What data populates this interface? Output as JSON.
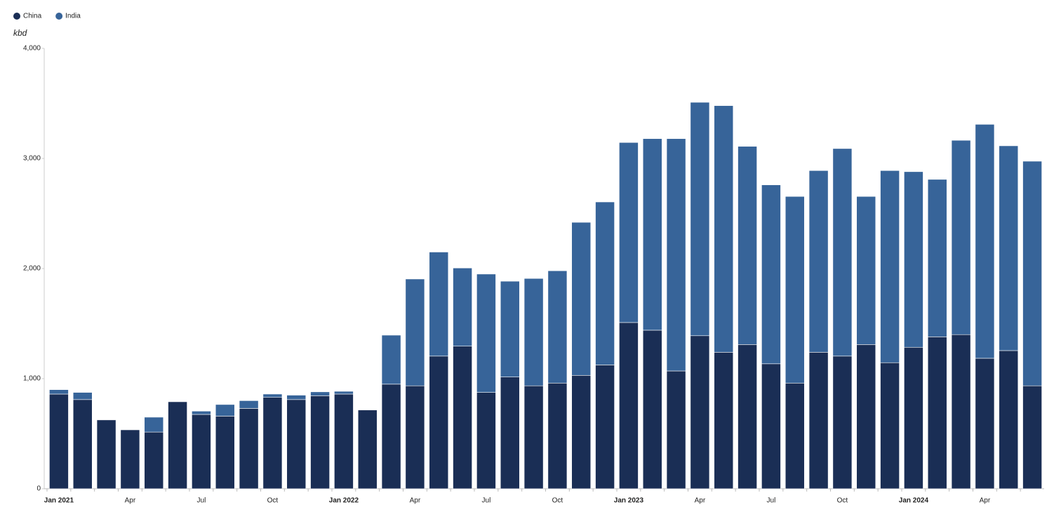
{
  "chart_data": {
    "type": "stacked_bar",
    "y_label": "kbd",
    "categories": [
      "Jan 2021",
      null,
      null,
      "Apr",
      null,
      null,
      "Jul",
      null,
      null,
      "Oct",
      null,
      null,
      "Jan 2022",
      null,
      null,
      "Apr",
      null,
      null,
      "Jul",
      null,
      null,
      "Oct",
      null,
      null,
      "Jan 2023",
      null,
      null,
      "Apr",
      null,
      null,
      "Jul",
      null,
      null,
      "Oct",
      null,
      null,
      "Jan 2024",
      null,
      null,
      "Apr",
      null,
      null
    ],
    "series": [
      {
        "name": "China",
        "color": "#1a2e55",
        "values": [
          860,
          810,
          625,
          535,
          515,
          790,
          675,
          660,
          730,
          830,
          810,
          845,
          860,
          715,
          950,
          935,
          1205,
          1295,
          875,
          1015,
          935,
          960,
          1030,
          1125,
          1510,
          1440,
          1070,
          1390,
          1240,
          1310,
          1135,
          960,
          1240,
          1205,
          1310,
          1145,
          1285,
          1380,
          1400,
          1185,
          1255,
          935
        ]
      },
      {
        "name": "India",
        "color": "#376499",
        "values": [
          40,
          65,
          0,
          0,
          135,
          0,
          30,
          105,
          70,
          30,
          40,
          35,
          25,
          0,
          445,
          970,
          945,
          710,
          1075,
          870,
          975,
          1020,
          1390,
          1480,
          1635,
          1740,
          2110,
          2120,
          2240,
          1800,
          1625,
          1695,
          1650,
          1885,
          1345,
          1745,
          1595,
          1430,
          1765,
          2125,
          1860,
          2040
        ]
      }
    ],
    "ylim": [
      0,
      4000
    ],
    "yticks": [
      0,
      {
        "value": 1000,
        "label": "1,000"
      },
      {
        "value": 2000,
        "label": "2,000"
      },
      {
        "value": 3000,
        "label": "3,000"
      },
      {
        "value": 4000,
        "label": "4,000"
      }
    ],
    "grid": false
  }
}
